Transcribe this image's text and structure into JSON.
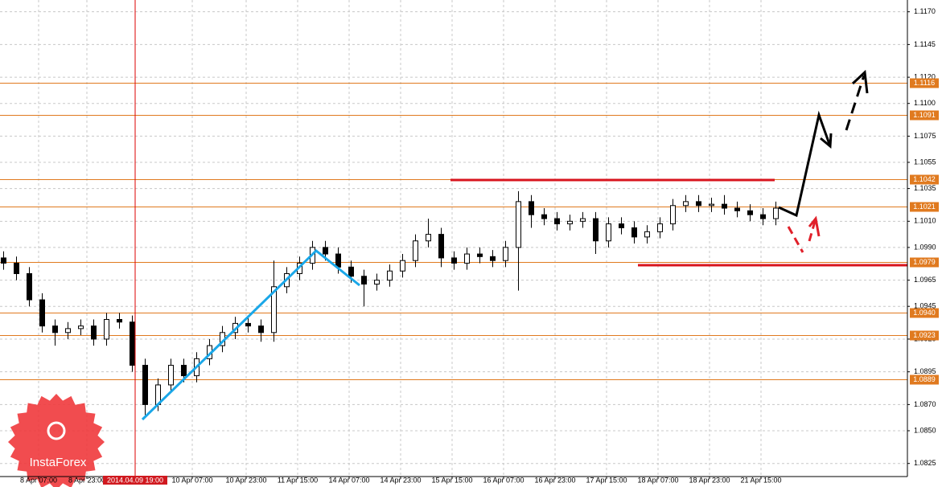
{
  "chart_data": {
    "type": "candlestick",
    "ylim": [
      1.0815,
      1.1179
    ],
    "yticks": [
      {
        "value": 1.117,
        "label": "1.1170"
      },
      {
        "value": 1.1145,
        "label": "1.1145"
      },
      {
        "value": 1.112,
        "label": "1.1120"
      },
      {
        "value": 1.11,
        "label": "1.1100"
      },
      {
        "value": 1.1075,
        "label": "1.1075"
      },
      {
        "value": 1.1055,
        "label": "1.1055"
      },
      {
        "value": 1.1035,
        "label": "1.1035"
      },
      {
        "value": 1.101,
        "label": "1.1010"
      },
      {
        "value": 1.099,
        "label": "1.0990"
      },
      {
        "value": 1.0965,
        "label": "1.0965"
      },
      {
        "value": 1.0945,
        "label": "1.0945"
      },
      {
        "value": 1.092,
        "label": "1.0920"
      },
      {
        "value": 1.0895,
        "label": "1.0895"
      },
      {
        "value": 1.087,
        "label": "1.0870"
      },
      {
        "value": 1.085,
        "label": "1.0850"
      },
      {
        "value": 1.0825,
        "label": "1.0825"
      }
    ],
    "grid": true,
    "x_labels": [
      "8 Apr 07:00",
      "8 Apr 23:00",
      "10 Apr 07:00",
      "10 Apr 23:00",
      "11 Apr 15:00",
      "14 Apr 07:00",
      "14 Apr 23:00",
      "15 Apr 15:00",
      "16 Apr 07:00",
      "16 Apr 23:00",
      "17 Apr 15:00",
      "18 Apr 07:00",
      "18 Apr 23:00",
      "21 Apr 15:00"
    ],
    "cursor_time": "2014.04.09 19:00",
    "levels": [
      1.1116,
      1.1091,
      1.1042,
      1.1021,
      1.0979,
      {
        "value": 1.094,
        "label": "1.0940"
      },
      1.0923,
      1.0889
    ],
    "level_color": "#e07a1f",
    "up_color": "#ffffff",
    "down_color": "#000000",
    "open": [
      1.0982,
      1.0978,
      1.097,
      1.095,
      1.093,
      1.0925,
      1.0928,
      1.093,
      1.092,
      1.0935,
      1.0933,
      1.09,
      1.087,
      1.0885,
      1.09,
      1.0892,
      1.0905,
      1.0915,
      1.0925,
      1.0932,
      1.093,
      1.0925,
      1.096,
      1.097,
      1.0978,
      1.099,
      1.0985,
      1.0975,
      1.0968,
      1.0962,
      1.0965,
      1.0972,
      1.098,
      1.0995,
      1.1,
      1.0982,
      1.0978,
      1.0985,
      1.0983,
      1.098,
      1.099,
      1.1025,
      1.1015,
      1.1012,
      1.1008,
      1.101,
      1.1012,
      1.0995,
      1.1008,
      1.1005,
      1.0998,
      1.1002,
      1.1008,
      1.1022,
      1.1025,
      1.1022,
      1.1023,
      1.102,
      1.1018,
      1.1015,
      1.1012
    ],
    "high": [
      1.0987,
      1.0983,
      1.0975,
      1.0955,
      1.0935,
      1.0933,
      1.0935,
      1.0935,
      1.094,
      1.094,
      1.0938,
      1.0905,
      1.089,
      1.0905,
      1.0905,
      1.091,
      1.092,
      1.093,
      1.0937,
      1.0937,
      1.0935,
      1.098,
      1.0975,
      1.0983,
      1.0995,
      1.0995,
      1.099,
      1.098,
      1.0973,
      1.097,
      1.0977,
      1.0985,
      1.1,
      1.1012,
      1.1005,
      1.0987,
      1.099,
      1.099,
      1.0988,
      1.0995,
      1.1033,
      1.103,
      1.102,
      1.1017,
      1.1015,
      1.1017,
      1.1017,
      1.1013,
      1.1013,
      1.101,
      1.1007,
      1.1013,
      1.1027,
      1.103,
      1.103,
      1.1028,
      1.103,
      1.1025,
      1.1023,
      1.102,
      1.1025
    ],
    "low": [
      1.0973,
      1.0965,
      1.0945,
      1.0925,
      1.0915,
      1.092,
      1.0923,
      1.0915,
      1.0915,
      1.0928,
      1.0895,
      1.0862,
      1.0865,
      1.088,
      1.0887,
      1.0887,
      1.09,
      1.091,
      1.092,
      1.0925,
      1.0918,
      1.0918,
      1.0955,
      1.0965,
      1.0973,
      1.098,
      1.097,
      1.0963,
      1.0945,
      1.0957,
      1.096,
      1.0967,
      1.0975,
      1.099,
      1.0975,
      1.0973,
      1.0973,
      1.0978,
      1.0975,
      1.0975,
      1.0957,
      1.1005,
      1.1007,
      1.1003,
      1.1003,
      1.1005,
      1.0985,
      1.099,
      1.1,
      1.0993,
      1.0993,
      1.0997,
      1.1003,
      1.1017,
      1.1017,
      1.1017,
      1.1015,
      1.1013,
      1.101,
      1.1007,
      1.1007
    ],
    "close": [
      1.0978,
      1.097,
      1.095,
      1.093,
      1.0925,
      1.0928,
      1.093,
      1.092,
      1.0935,
      1.0933,
      1.09,
      1.087,
      1.0885,
      1.09,
      1.0892,
      1.0905,
      1.0915,
      1.0925,
      1.0932,
      1.093,
      1.0925,
      1.096,
      1.097,
      1.0978,
      1.099,
      1.0985,
      1.0975,
      1.0968,
      1.0962,
      1.0965,
      1.0972,
      1.098,
      1.0995,
      1.1,
      1.0982,
      1.0978,
      1.0985,
      1.0983,
      1.098,
      1.099,
      1.1025,
      1.1015,
      1.1012,
      1.1008,
      1.101,
      1.1012,
      1.0995,
      1.1008,
      1.1005,
      1.0998,
      1.1002,
      1.1008,
      1.1022,
      1.1025,
      1.1022,
      1.1023,
      1.102,
      1.1018,
      1.1015,
      1.1012,
      1.102
    ],
    "watermark": "InstaForex"
  }
}
